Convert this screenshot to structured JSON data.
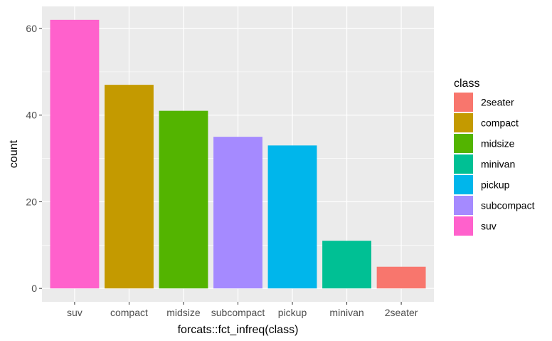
{
  "chart_data": {
    "type": "bar",
    "categories": [
      "suv",
      "compact",
      "midsize",
      "subcompact",
      "pickup",
      "minivan",
      "2seater"
    ],
    "values": [
      62,
      47,
      41,
      35,
      33,
      11,
      5
    ],
    "bar_colors": [
      "#FF61CC",
      "#C49A00",
      "#53B400",
      "#A58AFF",
      "#00B6EB",
      "#00C094",
      "#F8766D"
    ],
    "xlabel": "forcats::fct_infreq(class)",
    "ylabel": "count",
    "ylim": [
      -3.1,
      65.1
    ],
    "yticks": [
      0,
      20,
      40,
      60
    ],
    "ytick_labels": [
      "0",
      "20",
      "40",
      "60"
    ],
    "minor_yticks": [
      10,
      30,
      50
    ],
    "grid": true,
    "panel_background": "#EBEBEB",
    "grid_color": "#FFFFFF",
    "legend": {
      "title": "class",
      "position": "right",
      "entries": [
        {
          "label": "2seater",
          "color": "#F8766D"
        },
        {
          "label": "compact",
          "color": "#C49A00"
        },
        {
          "label": "midsize",
          "color": "#53B400"
        },
        {
          "label": "minivan",
          "color": "#00C094"
        },
        {
          "label": "pickup",
          "color": "#00B6EB"
        },
        {
          "label": "subcompact",
          "color": "#A58AFF"
        },
        {
          "label": "suv",
          "color": "#FF61CC"
        }
      ]
    }
  }
}
